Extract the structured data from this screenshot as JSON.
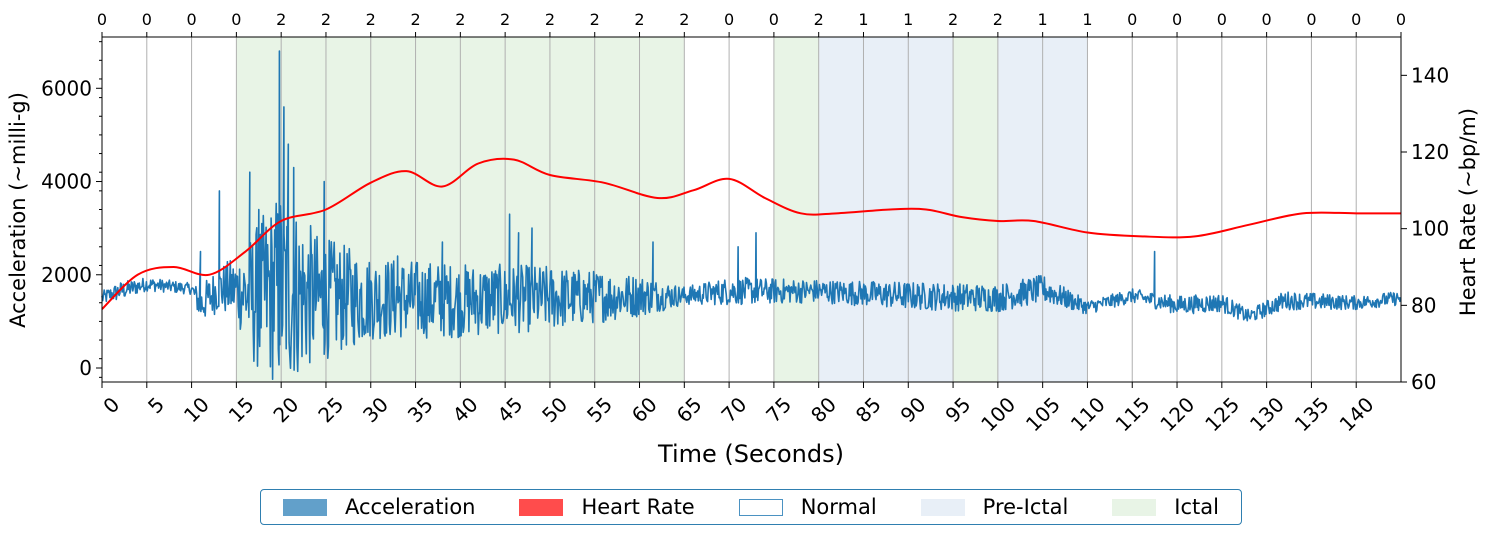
{
  "chart_data": {
    "type": "line",
    "xlabel": "Time (Seconds)",
    "ylabel_left": "Acceleration (~milli-g)",
    "ylabel_right": "Heart Rate (~bp/m)",
    "xlim": [
      0,
      145
    ],
    "ylim_left": [
      -300,
      7100
    ],
    "ylim_right": [
      60,
      150
    ],
    "x_ticks": [
      0,
      5,
      10,
      15,
      20,
      25,
      30,
      35,
      40,
      45,
      50,
      55,
      60,
      65,
      70,
      75,
      80,
      85,
      90,
      95,
      100,
      105,
      110,
      115,
      120,
      125,
      130,
      135,
      140
    ],
    "y_ticks_left": [
      0,
      2000,
      4000,
      6000
    ],
    "y_ticks_right": [
      60,
      80,
      100,
      120,
      140
    ],
    "grid": "vertical",
    "top_axis_labels": [
      "0",
      "0",
      "0",
      "0",
      "2",
      "2",
      "2",
      "2",
      "2",
      "2",
      "2",
      "2",
      "2",
      "2",
      "0",
      "0",
      "2",
      "1",
      "1",
      "2",
      "2",
      "1",
      "1",
      "0",
      "0",
      "0",
      "0",
      "0",
      "0",
      "0"
    ],
    "regions": [
      {
        "label": "Ictal",
        "start": 15,
        "end": 65,
        "color": "#e8f4e6"
      },
      {
        "label": "Ictal",
        "start": 75,
        "end": 80,
        "color": "#e8f4e6"
      },
      {
        "label": "Pre-Ictal",
        "start": 80,
        "end": 95,
        "color": "#e8eff7"
      },
      {
        "label": "Ictal",
        "start": 95,
        "end": 100,
        "color": "#e8f4e6"
      },
      {
        "label": "Pre-Ictal",
        "start": 100,
        "end": 110,
        "color": "#e8eff7"
      }
    ],
    "series": [
      {
        "name": "Heart Rate",
        "axis": "right",
        "color": "#ff0000",
        "x": [
          0,
          4,
          8,
          12,
          16,
          20,
          25,
          30,
          34,
          38,
          42,
          46,
          50,
          56,
          62,
          66,
          70,
          74,
          78,
          82,
          88,
          92,
          96,
          100,
          104,
          110,
          116,
          122,
          128,
          134,
          140,
          145
        ],
        "values": [
          79,
          88,
          90,
          88,
          94,
          102,
          105,
          112,
          115,
          111,
          117,
          118,
          114,
          112,
          108,
          110,
          113,
          108,
          104,
          104,
          105,
          105,
          103,
          102,
          102,
          99,
          98,
          98,
          101,
          104,
          104,
          104
        ]
      },
      {
        "name": "Acceleration",
        "axis": "left",
        "color": "#1f77b4",
        "envelope": [
          {
            "x": 0,
            "center": 1500,
            "amp": 150
          },
          {
            "x": 2,
            "center": 1650,
            "amp": 200
          },
          {
            "x": 5,
            "center": 1800,
            "amp": 150
          },
          {
            "x": 10,
            "center": 1700,
            "amp": 120
          },
          {
            "x": 11,
            "center": 1350,
            "amp": 400
          },
          {
            "x": 13,
            "center": 1700,
            "amp": 500
          },
          {
            "x": 15,
            "center": 1700,
            "amp": 700
          },
          {
            "x": 17,
            "center": 1500,
            "amp": 1500
          },
          {
            "x": 20,
            "center": 1700,
            "amp": 2200
          },
          {
            "x": 24,
            "center": 1500,
            "amp": 1400
          },
          {
            "x": 30,
            "center": 1500,
            "amp": 900
          },
          {
            "x": 40,
            "center": 1450,
            "amp": 800
          },
          {
            "x": 50,
            "center": 1500,
            "amp": 700
          },
          {
            "x": 60,
            "center": 1550,
            "amp": 450
          },
          {
            "x": 65,
            "center": 1550,
            "amp": 200
          },
          {
            "x": 70,
            "center": 1650,
            "amp": 300
          },
          {
            "x": 80,
            "center": 1650,
            "amp": 250
          },
          {
            "x": 90,
            "center": 1550,
            "amp": 300
          },
          {
            "x": 100,
            "center": 1500,
            "amp": 300
          },
          {
            "x": 105,
            "center": 1700,
            "amp": 300
          },
          {
            "x": 110,
            "center": 1300,
            "amp": 150
          },
          {
            "x": 115,
            "center": 1550,
            "amp": 150
          },
          {
            "x": 120,
            "center": 1350,
            "amp": 200
          },
          {
            "x": 125,
            "center": 1400,
            "amp": 200
          },
          {
            "x": 128,
            "center": 1100,
            "amp": 150
          },
          {
            "x": 132,
            "center": 1450,
            "amp": 200
          },
          {
            "x": 140,
            "center": 1400,
            "amp": 150
          },
          {
            "x": 145,
            "center": 1500,
            "amp": 150
          }
        ],
        "spikes": [
          {
            "x": 11,
            "y": 2500
          },
          {
            "x": 13.1,
            "y": 3800
          },
          {
            "x": 16.5,
            "y": 4200
          },
          {
            "x": 17.5,
            "y": 3400
          },
          {
            "x": 19.8,
            "y": 6800
          },
          {
            "x": 20.3,
            "y": 5600
          },
          {
            "x": 20.8,
            "y": 4800
          },
          {
            "x": 21.4,
            "y": 4300
          },
          {
            "x": 24.8,
            "y": 4000
          },
          {
            "x": 33,
            "y": 2400
          },
          {
            "x": 38,
            "y": 2700
          },
          {
            "x": 45.5,
            "y": 3300
          },
          {
            "x": 46.5,
            "y": 2900
          },
          {
            "x": 48,
            "y": 3000
          },
          {
            "x": 61.5,
            "y": 2700
          },
          {
            "x": 71,
            "y": 2600
          },
          {
            "x": 73,
            "y": 2900
          },
          {
            "x": 117.5,
            "y": 2500
          }
        ]
      }
    ],
    "legend": [
      {
        "label": "Acceleration",
        "style": "fill",
        "color": "#1f77b4"
      },
      {
        "label": "Heart Rate",
        "style": "fill",
        "color": "#ff0000"
      },
      {
        "label": "Normal",
        "style": "outline",
        "color": "#1f77b4"
      },
      {
        "label": "Pre-Ictal",
        "style": "fill",
        "color": "#e8eff7"
      },
      {
        "label": "Ictal",
        "style": "fill",
        "color": "#e8f4e6"
      }
    ],
    "legend_position": "bottom-center"
  }
}
